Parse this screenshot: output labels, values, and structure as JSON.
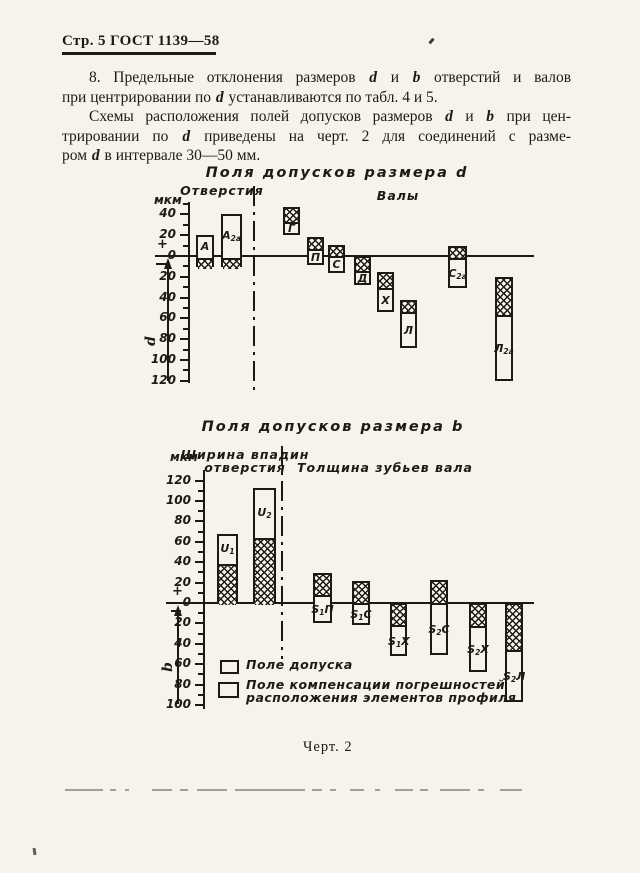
{
  "page": {
    "bg": "#f5f3ec",
    "ink": "#1d1a14"
  },
  "header": {
    "text": "Стр. 5 ГОСТ 1139—58"
  },
  "paragraphs": [
    {
      "justify": true,
      "indent": true,
      "segments": [
        {
          "t": "8. Предельные отклонения размеров "
        },
        {
          "t": "d",
          "i": 1
        },
        {
          "t": " и "
        },
        {
          "t": "b",
          "i": 1
        },
        {
          "t": " отверстий и валов"
        }
      ]
    },
    {
      "justify": false,
      "indent": false,
      "segments": [
        {
          "t": "при центрировании по "
        },
        {
          "t": "d",
          "i": 1
        },
        {
          "t": " устанавливаются по табл. 4 и 5."
        }
      ]
    },
    {
      "justify": true,
      "indent": true,
      "segments": [
        {
          "t": "Схемы расположения полей допусков размеров "
        },
        {
          "t": "d",
          "i": 1
        },
        {
          "t": " и "
        },
        {
          "t": "b",
          "i": 1
        },
        {
          "t": " при цен-"
        }
      ]
    },
    {
      "justify": true,
      "indent": false,
      "segments": [
        {
          "t": "трировании по "
        },
        {
          "t": "d",
          "i": 1
        },
        {
          "t": " приведены на черт. 2 для соединений с разме-"
        }
      ]
    },
    {
      "justify": false,
      "indent": false,
      "segments": [
        {
          "t": "ром "
        },
        {
          "t": "d",
          "i": 1
        },
        {
          "t": " в интервале 30—50 мм."
        }
      ]
    }
  ],
  "legend": {
    "tolerance": "Поле допуска",
    "compensation_line1": "Поле компенсации погрешностей",
    "compensation_line2": "расположения элементов профиля"
  },
  "caption": "Черт. 2",
  "chart_data": [
    {
      "type": "bar",
      "title": "Поля допусков размера d",
      "unit": "мкм",
      "ylabel": "d",
      "group_left": "Отверстия",
      "group_right": "Валы",
      "ylim": [
        -120,
        50
      ],
      "tick_major": 20,
      "tick_minor": 10,
      "legend": [
        "Поле допуска",
        "Поле компенсации погрешностей расположения элементов профиля"
      ],
      "bars": [
        {
          "name": "A",
          "label": [
            [
              "А",
              0
            ]
          ],
          "group": "отверстия",
          "tolerance_um": [
            0,
            20
          ],
          "compensation_um": [
            -11,
            0
          ]
        },
        {
          "name": "A2a",
          "label": [
            [
              "А",
              0
            ],
            [
              "2a",
              1
            ]
          ],
          "group": "отверстия",
          "tolerance_um": [
            0,
            40
          ],
          "compensation_um": [
            -11,
            0
          ]
        },
        {
          "name": "G",
          "label": [
            [
              "Г",
              0
            ]
          ],
          "group": "валы",
          "tolerance_um": [
            20,
            33
          ],
          "compensation_um": [
            33,
            47
          ]
        },
        {
          "name": "P",
          "label": [
            [
              "П",
              0
            ]
          ],
          "group": "валы",
          "tolerance_um": [
            -9,
            7
          ],
          "compensation_um": [
            7,
            18
          ]
        },
        {
          "name": "S",
          "label": [
            [
              "С",
              0
            ]
          ],
          "group": "валы",
          "tolerance_um": [
            -16,
            0
          ],
          "compensation_um": [
            0,
            11
          ]
        },
        {
          "name": "D",
          "label": [
            [
              "Д",
              0
            ]
          ],
          "group": "валы",
          "tolerance_um": [
            -28,
            -14
          ],
          "compensation_um": [
            -14,
            0
          ]
        },
        {
          "name": "X",
          "label": [
            [
              "Х",
              0
            ]
          ],
          "group": "валы",
          "tolerance_um": [
            -54,
            -31
          ],
          "compensation_um": [
            -31,
            -15
          ]
        },
        {
          "name": "L",
          "label": [
            [
              "Л",
              0
            ]
          ],
          "group": "валы",
          "tolerance_um": [
            -88,
            -54
          ],
          "compensation_um": [
            -54,
            -42
          ]
        },
        {
          "name": "S2a",
          "label": [
            [
              "С",
              0
            ],
            [
              "2a",
              1
            ]
          ],
          "group": "валы",
          "tolerance_um": [
            -31,
            -2
          ],
          "compensation_um": [
            -2,
            10
          ]
        },
        {
          "name": "L2a",
          "label": [
            [
              "Л",
              0
            ],
            [
              "2a",
              1
            ]
          ],
          "group": "валы",
          "tolerance_um": [
            -120,
            -57
          ],
          "compensation_um": [
            -57,
            -20
          ]
        }
      ]
    },
    {
      "type": "bar",
      "title": "Поля допусков размера b",
      "unit": "мкм",
      "ylabel": "b",
      "group_left": "Ширина впадин\nотверстия",
      "group_right": "Толщина зубьев вала",
      "ylim": [
        -100,
        120
      ],
      "tick_major": 20,
      "tick_minor": 10,
      "bars": [
        {
          "name": "U1",
          "label": [
            [
              "U",
              0
            ],
            [
              "1",
              1
            ]
          ],
          "group": "отверстие",
          "tolerance_um": [
            40,
            68
          ],
          "compensation_um": [
            0,
            40
          ]
        },
        {
          "name": "U2",
          "label": [
            [
              "U",
              0
            ],
            [
              "2",
              1
            ]
          ],
          "group": "отверстие",
          "tolerance_um": [
            66,
            113
          ],
          "compensation_um": [
            0,
            66
          ]
        },
        {
          "name": "S1P",
          "label": [
            [
              "S",
              0
            ],
            [
              "1",
              1
            ],
            [
              "П",
              0
            ]
          ],
          "group": "вал",
          "tolerance_um": [
            -20,
            8
          ],
          "compensation_um": [
            8,
            29
          ]
        },
        {
          "name": "S1S",
          "label": [
            [
              "S",
              0
            ],
            [
              "1",
              1
            ],
            [
              "С",
              0
            ]
          ],
          "group": "вал",
          "tolerance_um": [
            -22,
            0
          ],
          "compensation_um": [
            0,
            22
          ]
        },
        {
          "name": "S1X",
          "label": [
            [
              "S",
              0
            ],
            [
              "1",
              1
            ],
            [
              "Х",
              0
            ]
          ],
          "group": "вал",
          "tolerance_um": [
            -52,
            -22
          ],
          "compensation_um": [
            -22,
            0
          ]
        },
        {
          "name": "S2S",
          "label": [
            [
              "S",
              0
            ],
            [
              "2",
              1
            ],
            [
              "С",
              0
            ]
          ],
          "group": "вал",
          "tolerance_um": [
            -51,
            0
          ],
          "compensation_um": [
            0,
            23
          ]
        },
        {
          "name": "S2X",
          "label": [
            [
              "S",
              0
            ],
            [
              "2",
              1
            ],
            [
              "Х",
              0
            ]
          ],
          "group": "вал",
          "tolerance_um": [
            -68,
            -23
          ],
          "compensation_um": [
            -23,
            0
          ]
        },
        {
          "name": "S2L",
          "label": [
            [
              "S",
              0
            ],
            [
              "2",
              1
            ],
            [
              "Л",
              0
            ]
          ],
          "group": "вал",
          "tolerance_um": [
            -97,
            -46
          ],
          "compensation_um": [
            -46,
            0
          ]
        }
      ]
    }
  ]
}
